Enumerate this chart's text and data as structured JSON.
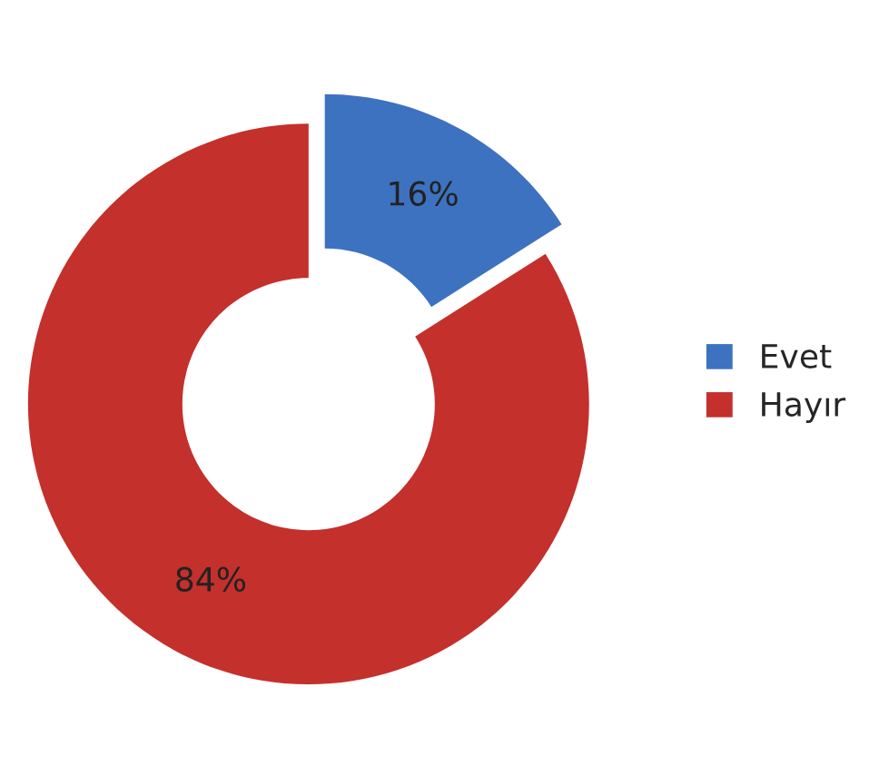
{
  "chart_data": {
    "type": "donut",
    "categories": [
      "Evet",
      "Hayır"
    ],
    "values": [
      16,
      84
    ],
    "colors": [
      "#3d72c0",
      "#c4302c"
    ],
    "value_labels": [
      "16%",
      "84%"
    ],
    "legend": "right"
  }
}
